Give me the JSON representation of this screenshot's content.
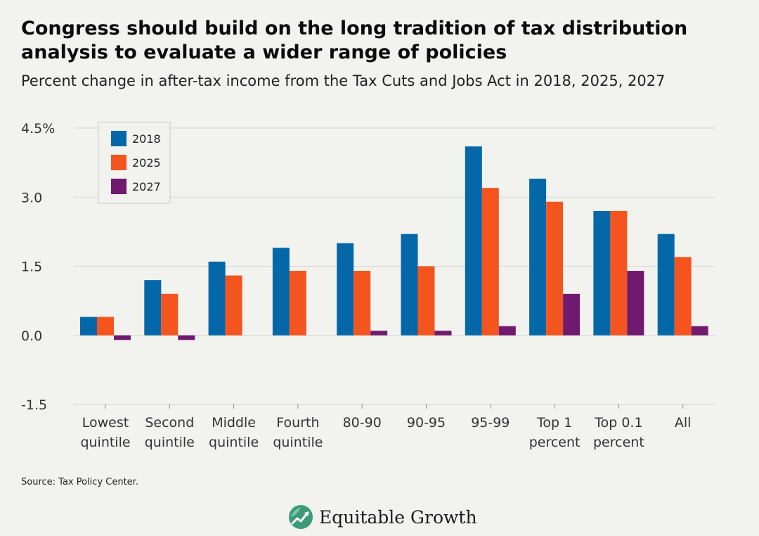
{
  "header": {
    "title": "Congress should build on the long tradition of tax distribution analysis to evaluate a wider range of policies",
    "subtitle": "Percent change in after-tax income from the Tax Cuts and Jobs Act in 2018, 2025, 2027"
  },
  "footer": {
    "source": "Source: Tax Policy Center.",
    "logo_text": "Equitable Growth",
    "logo_icon": "growth-chart-logo-icon"
  },
  "colors": {
    "series_2018": "#0468a8",
    "series_2025": "#f4551e",
    "series_2027": "#6f1a6e",
    "gridline": "#d4d4d2",
    "background": "#f2f2ef"
  },
  "chart_data": {
    "type": "bar",
    "categories": [
      [
        "Lowest",
        "quintile"
      ],
      [
        "Second",
        "quintile"
      ],
      [
        "Middle",
        "quintile"
      ],
      [
        "Fourth",
        "quintile"
      ],
      [
        "80-90"
      ],
      [
        "90-95"
      ],
      [
        "95-99"
      ],
      [
        "Top 1",
        "percent"
      ],
      [
        "Top 0.1",
        "percent"
      ],
      [
        "All"
      ]
    ],
    "series": [
      {
        "name": "2018",
        "values": [
          0.4,
          1.2,
          1.6,
          1.9,
          2.0,
          2.2,
          4.1,
          3.4,
          2.7,
          2.2
        ]
      },
      {
        "name": "2025",
        "values": [
          0.4,
          0.9,
          1.3,
          1.4,
          1.4,
          1.5,
          3.2,
          2.9,
          2.7,
          1.7
        ]
      },
      {
        "name": "2027",
        "values": [
          -0.1,
          -0.1,
          0.0,
          0.0,
          0.1,
          0.1,
          0.2,
          0.9,
          1.4,
          0.2
        ]
      }
    ],
    "yticks": [
      "4.5%",
      "3.0",
      "1.5",
      "0.0",
      "-1.5"
    ],
    "ytick_values": [
      4.5,
      3.0,
      1.5,
      0.0,
      -1.5
    ],
    "ylim": [
      -1.5,
      4.5
    ],
    "xlabel": "",
    "ylabel": "",
    "grid": true,
    "legend_position": "top-left"
  }
}
